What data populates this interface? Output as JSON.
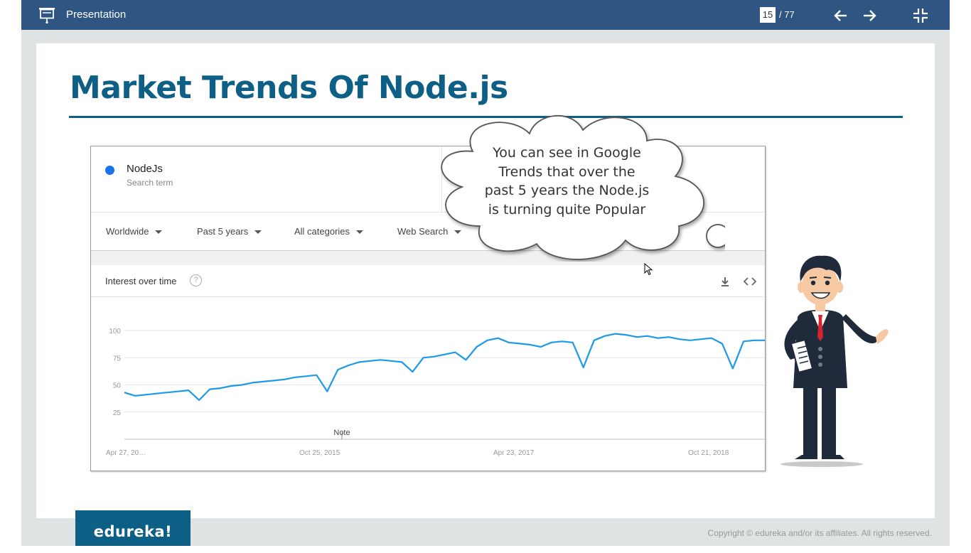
{
  "topbar": {
    "title": "Presentation",
    "page_current": "15",
    "page_total": "/ 77",
    "icons": [
      "presentation-icon",
      "arrow-left-icon",
      "arrow-right-icon",
      "exit-fullscreen-icon"
    ]
  },
  "slide": {
    "title": "Market Trends Of Node.js",
    "bubble_lines": [
      "You can see in Google",
      "Trends that over the",
      "past 5 years the Node.js",
      "is turning quite Popular"
    ],
    "logo": "edureka!",
    "copyright": "Copyright © edureka and/or its affiliates. All rights reserved."
  },
  "trends": {
    "term": "NodeJs",
    "term_sub": "Search term",
    "term_color": "#1a73e8",
    "filters": [
      "Worldwide",
      "Past 5 years",
      "All categories",
      "Web Search"
    ],
    "section_title": "Interest over time",
    "help": "?",
    "note": "Note"
  },
  "chart_data": {
    "type": "line",
    "title": "",
    "ylim": [
      0,
      100
    ],
    "yticks": [
      "100",
      "75",
      "50",
      "25"
    ],
    "xticks": [
      "Apr 27, 20…",
      "Oct 25, 2015",
      "Apr 23, 2017",
      "Oct 21, 2018"
    ],
    "annotation": "Note",
    "color": "#1a9ae8",
    "grid": true,
    "series": [
      {
        "name": "",
        "x": [
          "2014-04",
          "2014-05",
          "2014-06",
          "2014-07",
          "2014-08",
          "2014-09",
          "2014-10",
          "2014-11",
          "2014-12",
          "2015-01",
          "2015-02",
          "2015-03",
          "2015-04",
          "2015-05",
          "2015-06",
          "2015-07",
          "2015-08",
          "2015-09",
          "2015-10",
          "2015-11",
          "2015-12",
          "2016-01",
          "2016-02",
          "2016-03",
          "2016-04",
          "2016-05",
          "2016-06",
          "2016-07",
          "2016-08",
          "2016-09",
          "2016-10",
          "2016-11",
          "2016-12",
          "2017-01",
          "2017-02",
          "2017-03",
          "2017-04",
          "2017-05",
          "2017-06",
          "2017-07",
          "2017-08",
          "2017-09",
          "2017-10",
          "2017-11",
          "2017-12",
          "2018-01",
          "2018-02",
          "2018-03",
          "2018-04",
          "2018-05",
          "2018-06",
          "2018-07",
          "2018-08",
          "2018-09",
          "2018-10",
          "2018-11",
          "2018-12",
          "2019-01",
          "2019-02",
          "2019-03",
          "2019-04"
        ],
        "values": [
          43,
          40,
          41,
          42,
          43,
          44,
          45,
          36,
          46,
          47,
          49,
          50,
          52,
          53,
          54,
          55,
          57,
          58,
          59,
          44,
          64,
          68,
          71,
          72,
          73,
          72,
          71,
          62,
          75,
          76,
          78,
          80,
          73,
          85,
          91,
          93,
          89,
          88,
          87,
          85,
          89,
          90,
          89,
          66,
          91,
          95,
          97,
          96,
          94,
          95,
          93,
          94,
          92,
          91,
          92,
          93,
          88,
          65,
          90,
          91,
          91
        ]
      }
    ]
  }
}
